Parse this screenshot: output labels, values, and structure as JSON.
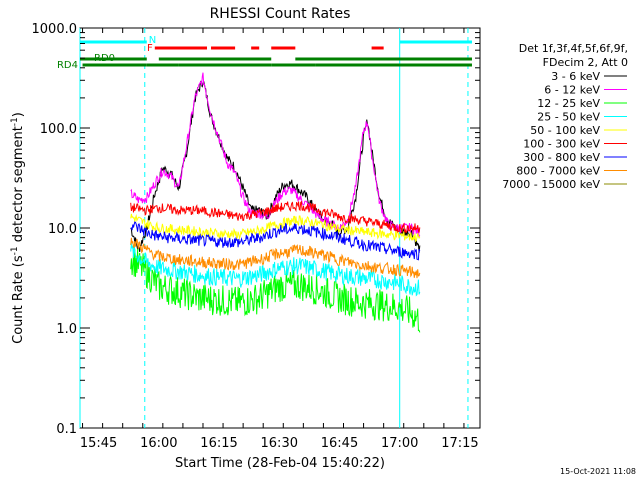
{
  "chart_data": {
    "type": "line",
    "title": "RHESSI Count Rates",
    "xlabel": "Start Time (28-Feb-04 15:40:22)",
    "ylabel": "Count Rate (s⁻¹ detector segment⁻¹)",
    "ylabel_parts": [
      "Count Rate (s",
      "-1",
      " detector segment",
      "-1",
      ")"
    ],
    "y_scale": "log",
    "ylim": [
      0.1,
      1000
    ],
    "xlim": [
      "15:40:22",
      "17:20:00"
    ],
    "x_ticks": [
      "15:45",
      "16:00",
      "16:15",
      "16:30",
      "16:45",
      "17:00",
      "17:15"
    ],
    "y_ticks": [
      {
        "value": 0.1,
        "label": "0.1"
      },
      {
        "value": 1,
        "label": "1.0"
      },
      {
        "value": 10,
        "label": "10.0"
      },
      {
        "value": 100,
        "label": "100.0"
      },
      {
        "value": 1000,
        "label": "1000.0"
      }
    ],
    "legend_title": [
      "Det 1f,3f,4f,5f,6f,9f,",
      "FDecim 2, Att 0"
    ],
    "legend_position": "right",
    "series": [
      {
        "name": "3 - 6 keV",
        "color": "#000000",
        "x": [
          "15:53",
          "15:55",
          "15:57",
          "15:59",
          "16:01",
          "16:03",
          "16:05",
          "16:07",
          "16:09",
          "16:11",
          "16:12",
          "16:13",
          "16:15",
          "16:17",
          "16:19",
          "16:21",
          "16:23",
          "16:25",
          "16:27",
          "16:29",
          "16:31",
          "16:33",
          "16:35",
          "16:37",
          "16:39",
          "16:41",
          "16:43",
          "16:45",
          "16:47",
          "16:49",
          "16:51",
          "16:52",
          "16:53",
          "16:55",
          "16:57",
          "16:59",
          "17:01",
          "17:03",
          "17:05"
        ],
        "values": [
          10,
          6,
          10,
          22,
          40,
          35,
          25,
          60,
          200,
          300,
          200,
          130,
          80,
          50,
          40,
          25,
          15,
          15,
          13,
          20,
          27,
          28,
          24,
          20,
          15,
          12,
          11,
          9,
          10,
          20,
          80,
          120,
          60,
          20,
          12,
          10,
          9,
          9,
          6
        ]
      },
      {
        "name": "6 - 12 keV",
        "color": "#ff00ff",
        "x": [
          "15:53",
          "15:55",
          "15:57",
          "15:59",
          "16:01",
          "16:03",
          "16:05",
          "16:07",
          "16:09",
          "16:11",
          "16:12",
          "16:13",
          "16:15",
          "16:17",
          "16:19",
          "16:21",
          "16:23",
          "16:25",
          "16:27",
          "16:29",
          "16:31",
          "16:33",
          "16:35",
          "16:37",
          "16:39",
          "16:41",
          "16:43",
          "16:45",
          "16:47",
          "16:49",
          "16:51",
          "16:52",
          "16:53",
          "16:55",
          "16:57",
          "16:59",
          "17:01",
          "17:03",
          "17:05"
        ],
        "values": [
          22,
          19,
          20,
          28,
          38,
          33,
          25,
          70,
          200,
          320,
          210,
          140,
          80,
          45,
          35,
          20,
          14,
          14,
          13,
          18,
          23,
          24,
          20,
          17,
          14,
          12,
          11,
          10,
          12,
          25,
          95,
          115,
          55,
          18,
          11,
          10,
          10,
          10,
          9
        ]
      },
      {
        "name": "12 - 25 keV",
        "color": "#00ff00",
        "x": [
          "15:53",
          "15:57",
          "16:00",
          "16:05",
          "16:10",
          "16:15",
          "16:20",
          "16:25",
          "16:30",
          "16:35",
          "16:40",
          "16:45",
          "16:50",
          "16:55",
          "17:00",
          "17:03",
          "17:05"
        ],
        "values": [
          5,
          3.6,
          2.6,
          2.3,
          2,
          1.9,
          1.8,
          2,
          2.6,
          2.7,
          2.4,
          2,
          1.8,
          1.7,
          1.6,
          1.4,
          1.2
        ]
      },
      {
        "name": "25 - 50 keV",
        "color": "#00ffff",
        "x": [
          "15:53",
          "15:57",
          "16:00",
          "16:05",
          "16:10",
          "16:15",
          "16:20",
          "16:25",
          "16:30",
          "16:35",
          "16:40",
          "16:45",
          "16:50",
          "16:55",
          "17:00",
          "17:03",
          "17:05"
        ],
        "values": [
          6,
          4.5,
          4,
          3.7,
          3.4,
          3.2,
          3.1,
          3.4,
          4,
          4.2,
          3.8,
          3.4,
          3.2,
          3,
          2.8,
          2.6,
          2.5
        ]
      },
      {
        "name": "50 - 100 keV",
        "color": "#ffff00",
        "x": [
          "15:53",
          "15:57",
          "16:00",
          "16:05",
          "16:10",
          "16:15",
          "16:20",
          "16:25",
          "16:30",
          "16:35",
          "16:40",
          "16:45",
          "16:50",
          "16:55",
          "17:00",
          "17:03",
          "17:05"
        ],
        "values": [
          13,
          11,
          10,
          9.6,
          9.2,
          8.8,
          8.6,
          9.4,
          11,
          12,
          11,
          9.8,
          9.2,
          8.8,
          8.4,
          8.2,
          8
        ]
      },
      {
        "name": "100 - 300 keV",
        "color": "#ff0000",
        "x": [
          "15:53",
          "15:57",
          "16:00",
          "16:05",
          "16:10",
          "16:15",
          "16:20",
          "16:25",
          "16:30",
          "16:35",
          "16:40",
          "16:45",
          "16:50",
          "16:55",
          "17:00",
          "17:03",
          "17:05"
        ],
        "values": [
          16,
          15,
          16,
          15,
          15,
          14,
          13,
          14,
          16,
          17,
          15,
          13,
          12,
          11,
          10,
          10,
          10
        ]
      },
      {
        "name": "300 - 800 keV",
        "color": "#0000ff",
        "x": [
          "15:53",
          "15:57",
          "16:00",
          "16:05",
          "16:10",
          "16:15",
          "16:20",
          "16:25",
          "16:30",
          "16:35",
          "16:40",
          "16:45",
          "16:50",
          "16:55",
          "17:00",
          "17:03",
          "17:05"
        ],
        "values": [
          11,
          9,
          8.2,
          7.8,
          7.5,
          7.3,
          7.2,
          8,
          9.5,
          10,
          9,
          8,
          7,
          6.3,
          5.8,
          5.6,
          5.5
        ]
      },
      {
        "name": "800 - 7000 keV",
        "color": "#ff8c00",
        "x": [
          "15:53",
          "15:57",
          "16:00",
          "16:05",
          "16:10",
          "16:15",
          "16:20",
          "16:25",
          "16:30",
          "16:35",
          "16:40",
          "16:45",
          "16:50",
          "16:55",
          "17:00",
          "17:03",
          "17:05"
        ],
        "values": [
          7.5,
          6,
          5.2,
          4.8,
          4.6,
          4.4,
          4.3,
          4.8,
          5.6,
          6,
          5.5,
          4.8,
          4.3,
          4,
          3.8,
          3.6,
          3.5
        ]
      },
      {
        "name": "7000 - 15000 keV",
        "color": "#8b8b00",
        "x": [],
        "values": []
      }
    ],
    "annotations": {
      "attenuator_label": "N",
      "flare_label": "F",
      "rd0_label": "RD0",
      "rd4_label": "RD4",
      "attenuator_state_segments": [
        [
          "15:40:22",
          "15:57"
        ],
        [
          "17:00",
          "17:18"
        ]
      ],
      "flare_flag_segments": [
        [
          "15:59",
          "16:12"
        ],
        [
          "16:13",
          "16:19"
        ],
        [
          "16:23",
          "16:25"
        ],
        [
          "16:28",
          "16:34"
        ],
        [
          "16:53",
          "16:56"
        ]
      ],
      "rd0_segments": [
        [
          "15:40:22",
          "15:57"
        ],
        [
          "16:00",
          "16:28"
        ],
        [
          "16:34",
          "17:18"
        ]
      ],
      "rd4_segments": [
        [
          "15:41",
          "15:57"
        ],
        [
          "15:57",
          "16:05"
        ],
        [
          "16:05",
          "16:28"
        ],
        [
          "16:28",
          "16:39"
        ],
        [
          "16:39",
          "17:18"
        ]
      ],
      "solid_vertical_lines": [
        "15:40:22",
        "17:00"
      ],
      "dashed_vertical_lines": [
        "15:56:30",
        "17:17"
      ]
    },
    "footer_timestamp": "15-Oct-2021 11:08"
  }
}
